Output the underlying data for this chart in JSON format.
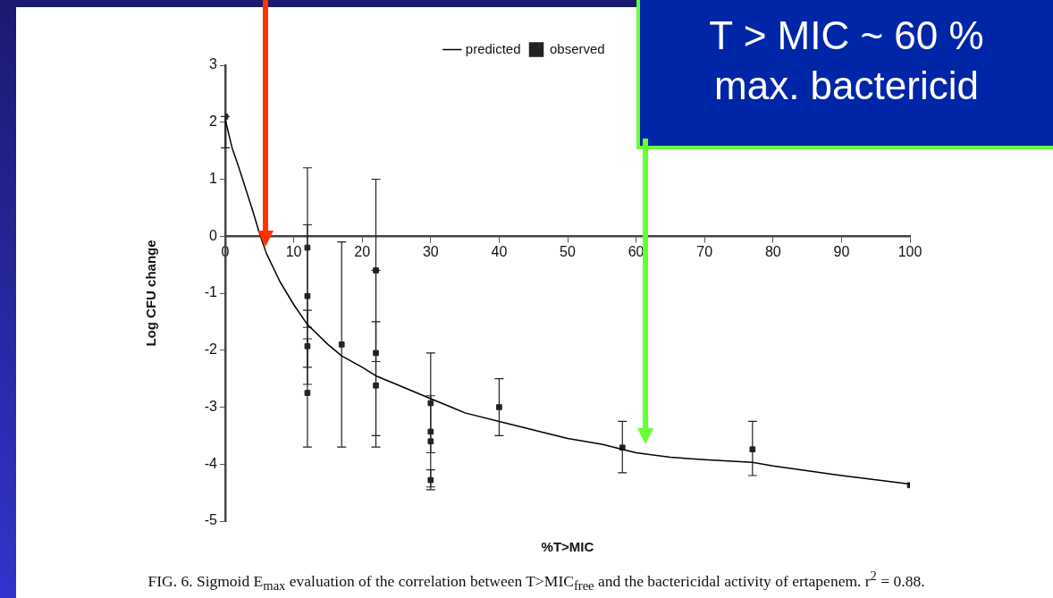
{
  "chart_data": {
    "type": "scatter",
    "xlabel": "%T>MIC",
    "ylabel": "Log CFU change",
    "xlim": [
      0,
      100
    ],
    "ylim": [
      -5,
      3
    ],
    "xticks": [
      0,
      10,
      20,
      30,
      40,
      50,
      60,
      70,
      80,
      90,
      100
    ],
    "yticks": [
      3,
      2,
      1,
      0,
      -1,
      -2,
      -3,
      -4,
      -5
    ],
    "legend": "top",
    "series": [
      {
        "name": "predicted",
        "type": "line",
        "color": "#000000",
        "marker": "none",
        "x": [
          0,
          1,
          2,
          4,
          5,
          6,
          8,
          10,
          12,
          15,
          17,
          20,
          22,
          25,
          30,
          35,
          40,
          45,
          50,
          55,
          60,
          65,
          70,
          77,
          80,
          90,
          100
        ],
        "values": [
          2.05,
          1.55,
          1.2,
          0.45,
          0.05,
          -0.3,
          -0.8,
          -1.2,
          -1.55,
          -1.9,
          -2.1,
          -2.3,
          -2.45,
          -2.6,
          -2.85,
          -3.1,
          -3.25,
          -3.4,
          -3.55,
          -3.65,
          -3.8,
          -3.88,
          -3.92,
          -3.97,
          -4.03,
          -4.2,
          -4.35
        ]
      },
      {
        "name": "observed",
        "type": "scatter",
        "color": "#222222",
        "marker": "square",
        "x": [
          0,
          12,
          12,
          12,
          12,
          17,
          22,
          22,
          22,
          30,
          30,
          30,
          30,
          40,
          58,
          77,
          100
        ],
        "values": [
          2.1,
          -0.2,
          -1.05,
          -1.93,
          -2.75,
          -1.9,
          -0.6,
          -2.05,
          -2.62,
          -2.93,
          -3.43,
          -3.6,
          -4.28,
          -3.0,
          -3.71,
          -3.74,
          -4.37
        ],
        "errors": [
          [
            1.55,
            2.1
          ],
          [
            -1.6,
            1.2
          ],
          [
            -2.3,
            0.2
          ],
          [
            -2.6,
            -1.3
          ],
          [
            -3.7,
            -1.8
          ],
          [
            -3.7,
            -0.1
          ],
          [
            -2.2,
            1.0
          ],
          [
            -3.5,
            -0.6
          ],
          [
            -3.7,
            -1.5
          ],
          [
            -3.8,
            -2.05
          ],
          null,
          [
            -4.4,
            -2.8
          ],
          [
            -4.45,
            -4.1
          ],
          [
            -3.5,
            -2.5
          ],
          [
            -4.15,
            -3.25
          ],
          [
            -4.2,
            -3.25
          ],
          null
        ]
      }
    ],
    "annotations": [
      "T > MIC ~ 60 %",
      "max. bactericid",
      "FIG. 6. Sigmoid E$_{max}$ evaluation of the correlation between T>MIC$_{free}$ and the bactericidal activity of ertapenem. r$^{2}$ = 0.88."
    ]
  }
}
